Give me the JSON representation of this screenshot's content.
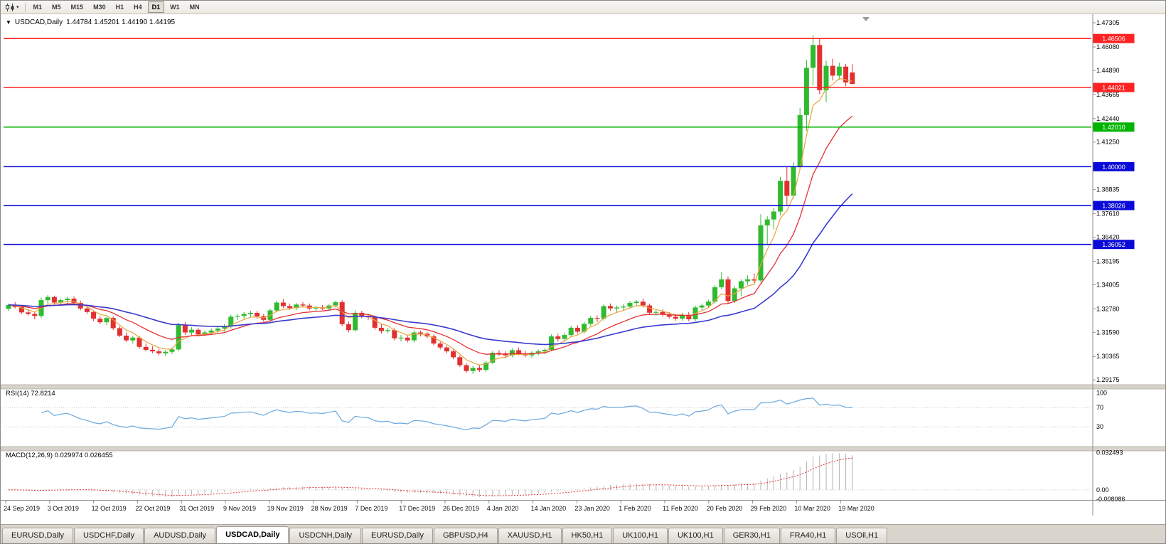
{
  "toolbar": {
    "icon": "charts-dropdown-icon",
    "dropdown_glyph": "▾",
    "timeframes": [
      "M1",
      "M5",
      "M15",
      "M30",
      "H1",
      "H4",
      "D1",
      "W1",
      "MN"
    ],
    "active_timeframe": "D1"
  },
  "chart": {
    "title_symbol": "USDCAD,Daily",
    "ohlc": "1.44784 1.45201 1.44190 1.44195",
    "one_click_glyph": "▼"
  },
  "price_scale": {
    "ticks": [
      "1.47305",
      "1.46080",
      "1.44890",
      "1.43665",
      "1.42440",
      "1.41250",
      "1.40000",
      "1.38835",
      "1.37610",
      "1.36420",
      "1.35195",
      "1.34005",
      "1.32780",
      "1.31590",
      "1.30365",
      "1.29175"
    ]
  },
  "panels": {
    "rsi": {
      "label": "RSI(14) 72.8214"
    },
    "macd": {
      "label": "MACD(12,26,9) 0.029974 0.026455"
    }
  },
  "tabs": {
    "items": [
      "EURUSD,Daily",
      "USDCHF,Daily",
      "AUDUSD,Daily",
      "USDCAD,Daily",
      "USDCNH,Daily",
      "EURUSD,Daily",
      "GBPUSD,H4",
      "XAUUSD,H1",
      "HK50,H1",
      "UK100,H1",
      "UK100,H1",
      "GER30,H1",
      "FRA40,H1",
      "USOil,H1"
    ],
    "active_index": 3
  },
  "chart_data": {
    "type": "candlestick",
    "symbol": "USDCAD",
    "timeframe": "Daily",
    "y_range": [
      1.29,
      1.4756
    ],
    "current_bar": {
      "open": 1.44784,
      "high": 1.45201,
      "low": 1.4419,
      "close": 1.44195
    },
    "colors": {
      "up": "#2fba2f",
      "down": "#e23030"
    },
    "x_axis_dates": [
      "24 Sep 2019",
      "3 Oct 2019",
      "12 Oct 2019",
      "22 Oct 2019",
      "31 Oct 2019",
      "9 Nov 2019",
      "19 Nov 2019",
      "28 Nov 2019",
      "7 Dec 2019",
      "17 Dec 2019",
      "26 Dec 2019",
      "4 Jan 2020",
      "14 Jan 2020",
      "23 Jan 2020",
      "1 Feb 2020",
      "11 Feb 2020",
      "20 Feb 2020",
      "29 Feb 2020",
      "10 Mar 2020",
      "19 Mar 2020"
    ],
    "horizontal_lines": [
      {
        "price": 1.46506,
        "color": "#ff2222"
      },
      {
        "price": 1.44021,
        "color": "#ff2222"
      },
      {
        "price": 1.4201,
        "color": "#00b400"
      },
      {
        "price": 1.4,
        "color": "#0a0ad8"
      },
      {
        "price": 1.38026,
        "color": "#0a0ad8"
      },
      {
        "price": 1.36052,
        "color": "#0a0ad8"
      }
    ],
    "moving_averages": [
      {
        "name": "ma-fast",
        "period": 5,
        "color": "#e8a33d"
      },
      {
        "name": "ma-mid",
        "period": 13,
        "color": "#e03131"
      },
      {
        "name": "ma-slow",
        "period": 34,
        "color": "#3a3ad0"
      }
    ],
    "indicators": {
      "rsi": {
        "period": 14,
        "current": 72.8214,
        "levels": [
          100,
          70,
          30
        ],
        "color": "#69a8e0"
      },
      "macd": {
        "fast": 12,
        "slow": 26,
        "signal": 9,
        "current_macd": 0.029974,
        "current_signal": 0.026455,
        "scale": [
          0.032493,
          0.0,
          -0.008086
        ]
      }
    },
    "candles_ohlc": [
      [
        1.3278,
        1.3305,
        1.3268,
        1.3298
      ],
      [
        1.3298,
        1.3312,
        1.328,
        1.3287
      ],
      [
        1.3287,
        1.3297,
        1.3252,
        1.326
      ],
      [
        1.326,
        1.3278,
        1.3244,
        1.3252
      ],
      [
        1.3252,
        1.3262,
        1.3225,
        1.3242
      ],
      [
        1.3242,
        1.3335,
        1.3232,
        1.3322
      ],
      [
        1.3322,
        1.3348,
        1.3305,
        1.3338
      ],
      [
        1.3338,
        1.3345,
        1.3298,
        1.331
      ],
      [
        1.331,
        1.333,
        1.3295,
        1.3322
      ],
      [
        1.3322,
        1.334,
        1.3306,
        1.333
      ],
      [
        1.333,
        1.3342,
        1.33,
        1.3308
      ],
      [
        1.3308,
        1.332,
        1.327,
        1.328
      ],
      [
        1.328,
        1.3298,
        1.3252,
        1.3262
      ],
      [
        1.3262,
        1.327,
        1.3216,
        1.3228
      ],
      [
        1.3228,
        1.324,
        1.32,
        1.321
      ],
      [
        1.321,
        1.3238,
        1.3196,
        1.3232
      ],
      [
        1.3232,
        1.324,
        1.317,
        1.318
      ],
      [
        1.318,
        1.319,
        1.3135,
        1.3142
      ],
      [
        1.3142,
        1.3158,
        1.311,
        1.3118
      ],
      [
        1.3118,
        1.3142,
        1.3102,
        1.3132
      ],
      [
        1.3132,
        1.314,
        1.3075,
        1.3085
      ],
      [
        1.3085,
        1.3102,
        1.3062,
        1.307
      ],
      [
        1.307,
        1.3088,
        1.3053,
        1.3062
      ],
      [
        1.3062,
        1.3075,
        1.3042,
        1.3052
      ],
      [
        1.3052,
        1.3068,
        1.3038,
        1.306
      ],
      [
        1.306,
        1.3082,
        1.3048,
        1.3072
      ],
      [
        1.3072,
        1.3208,
        1.3062,
        1.3195
      ],
      [
        1.3195,
        1.321,
        1.3145,
        1.3158
      ],
      [
        1.3158,
        1.3185,
        1.3142,
        1.3172
      ],
      [
        1.3172,
        1.3182,
        1.3138,
        1.3148
      ],
      [
        1.3148,
        1.3168,
        1.314,
        1.3158
      ],
      [
        1.3158,
        1.3178,
        1.3148,
        1.3168
      ],
      [
        1.3168,
        1.3188,
        1.3155,
        1.3178
      ],
      [
        1.3178,
        1.32,
        1.3162,
        1.3188
      ],
      [
        1.3188,
        1.3248,
        1.3178,
        1.3238
      ],
      [
        1.3238,
        1.3252,
        1.3222,
        1.3242
      ],
      [
        1.3242,
        1.3262,
        1.3228,
        1.3252
      ],
      [
        1.3252,
        1.3268,
        1.3238,
        1.3258
      ],
      [
        1.3258,
        1.3268,
        1.3228,
        1.324
      ],
      [
        1.324,
        1.3252,
        1.3212,
        1.3222
      ],
      [
        1.3222,
        1.3278,
        1.3212,
        1.327
      ],
      [
        1.327,
        1.3318,
        1.326,
        1.331
      ],
      [
        1.331,
        1.3328,
        1.3282,
        1.3292
      ],
      [
        1.3292,
        1.3305,
        1.3272,
        1.3282
      ],
      [
        1.3282,
        1.3308,
        1.3272,
        1.33
      ],
      [
        1.33,
        1.3312,
        1.3285,
        1.3295
      ],
      [
        1.3295,
        1.3305,
        1.327,
        1.328
      ],
      [
        1.328,
        1.3292,
        1.3268,
        1.3285
      ],
      [
        1.3285,
        1.3298,
        1.3272,
        1.328
      ],
      [
        1.328,
        1.3302,
        1.327,
        1.3295
      ],
      [
        1.3295,
        1.332,
        1.3285,
        1.3312
      ],
      [
        1.3312,
        1.3322,
        1.319,
        1.32
      ],
      [
        1.32,
        1.3215,
        1.3158,
        1.317
      ],
      [
        1.317,
        1.327,
        1.3162,
        1.3258
      ],
      [
        1.3258,
        1.3268,
        1.323,
        1.3242
      ],
      [
        1.3242,
        1.3252,
        1.3222,
        1.3235
      ],
      [
        1.3235,
        1.3245,
        1.3172,
        1.3182
      ],
      [
        1.3182,
        1.32,
        1.3152,
        1.3165
      ],
      [
        1.3165,
        1.3182,
        1.3155,
        1.317
      ],
      [
        1.317,
        1.318,
        1.3118,
        1.3128
      ],
      [
        1.3128,
        1.3145,
        1.3112,
        1.3132
      ],
      [
        1.3132,
        1.3142,
        1.3108,
        1.3118
      ],
      [
        1.3118,
        1.3168,
        1.3108,
        1.3158
      ],
      [
        1.3158,
        1.3168,
        1.3138,
        1.3152
      ],
      [
        1.3152,
        1.316,
        1.3128,
        1.3138
      ],
      [
        1.3138,
        1.3148,
        1.3092,
        1.3102
      ],
      [
        1.3102,
        1.3112,
        1.3072,
        1.3082
      ],
      [
        1.3082,
        1.3092,
        1.3052,
        1.3062
      ],
      [
        1.3062,
        1.3072,
        1.3022,
        1.3032
      ],
      [
        1.3032,
        1.3042,
        1.2982,
        1.2992
      ],
      [
        1.2992,
        1.3002,
        1.2952,
        1.2962
      ],
      [
        1.2962,
        1.2988,
        1.2948,
        1.2978
      ],
      [
        1.2978,
        1.2995,
        1.2958,
        1.2968
      ],
      [
        1.2968,
        1.3012,
        1.2958,
        1.3005
      ],
      [
        1.3005,
        1.3062,
        1.2998,
        1.3055
      ],
      [
        1.3055,
        1.3068,
        1.3038,
        1.3052
      ],
      [
        1.3052,
        1.3062,
        1.3028,
        1.3042
      ],
      [
        1.3042,
        1.3078,
        1.3032,
        1.3068
      ],
      [
        1.3068,
        1.3082,
        1.3042,
        1.3052
      ],
      [
        1.3052,
        1.3065,
        1.3032,
        1.3042
      ],
      [
        1.3042,
        1.3062,
        1.3028,
        1.3055
      ],
      [
        1.3055,
        1.3072,
        1.3042,
        1.3062
      ],
      [
        1.3062,
        1.3078,
        1.3048,
        1.307
      ],
      [
        1.307,
        1.3148,
        1.3062,
        1.3138
      ],
      [
        1.3138,
        1.3152,
        1.3112,
        1.3125
      ],
      [
        1.3125,
        1.3155,
        1.3115,
        1.3145
      ],
      [
        1.3145,
        1.3192,
        1.3135,
        1.3182
      ],
      [
        1.3182,
        1.3195,
        1.3152,
        1.3162
      ],
      [
        1.3162,
        1.3212,
        1.3152,
        1.3202
      ],
      [
        1.3202,
        1.3242,
        1.3192,
        1.3232
      ],
      [
        1.3232,
        1.3245,
        1.3212,
        1.3228
      ],
      [
        1.3228,
        1.3302,
        1.3218,
        1.3292
      ],
      [
        1.3292,
        1.3305,
        1.3268,
        1.328
      ],
      [
        1.328,
        1.3295,
        1.3262,
        1.3285
      ],
      [
        1.3285,
        1.3302,
        1.3272,
        1.329
      ],
      [
        1.329,
        1.3318,
        1.328,
        1.3308
      ],
      [
        1.3308,
        1.3322,
        1.3292,
        1.3315
      ],
      [
        1.3315,
        1.333,
        1.3285,
        1.3295
      ],
      [
        1.3295,
        1.3305,
        1.3248,
        1.3258
      ],
      [
        1.3258,
        1.3272,
        1.3242,
        1.3262
      ],
      [
        1.3262,
        1.3275,
        1.3238,
        1.3248
      ],
      [
        1.3248,
        1.3262,
        1.3228,
        1.3238
      ],
      [
        1.3238,
        1.3252,
        1.3218,
        1.3228
      ],
      [
        1.3228,
        1.3258,
        1.3218,
        1.3248
      ],
      [
        1.3248,
        1.3262,
        1.3215,
        1.3225
      ],
      [
        1.3225,
        1.3295,
        1.3215,
        1.3285
      ],
      [
        1.3285,
        1.3305,
        1.3268,
        1.3295
      ],
      [
        1.3295,
        1.3325,
        1.3285,
        1.3315
      ],
      [
        1.3315,
        1.3398,
        1.3305,
        1.3388
      ],
      [
        1.3388,
        1.3465,
        1.3378,
        1.3428
      ],
      [
        1.3428,
        1.3442,
        1.3302,
        1.3318
      ],
      [
        1.3318,
        1.3395,
        1.3308,
        1.3382
      ],
      [
        1.3382,
        1.3428,
        1.3342,
        1.3418
      ],
      [
        1.3418,
        1.3448,
        1.3398,
        1.3428
      ],
      [
        1.3428,
        1.3458,
        1.3408,
        1.3422
      ],
      [
        1.3422,
        1.3758,
        1.3412,
        1.3702
      ],
      [
        1.3702,
        1.3748,
        1.3602,
        1.3732
      ],
      [
        1.3732,
        1.3792,
        1.3682,
        1.3772
      ],
      [
        1.3772,
        1.3948,
        1.3752,
        1.3928
      ],
      [
        1.3928,
        1.3998,
        1.3802,
        1.3852
      ],
      [
        1.3852,
        1.4022,
        1.3842,
        1.3998
      ],
      [
        1.3998,
        1.4298,
        1.3988,
        1.4262
      ],
      [
        1.4262,
        1.4542,
        1.4182,
        1.4502
      ],
      [
        1.4502,
        1.4668,
        1.4412,
        1.4618
      ],
      [
        1.4618,
        1.4648,
        1.4368,
        1.4388
      ],
      [
        1.4388,
        1.4538,
        1.4328,
        1.4512
      ],
      [
        1.4512,
        1.4548,
        1.4438,
        1.4462
      ],
      [
        1.4462,
        1.4528,
        1.4442,
        1.4508
      ],
      [
        1.4508,
        1.4522,
        1.4408,
        1.4428
      ],
      [
        1.44784,
        1.45201,
        1.4419,
        1.44195
      ]
    ]
  }
}
